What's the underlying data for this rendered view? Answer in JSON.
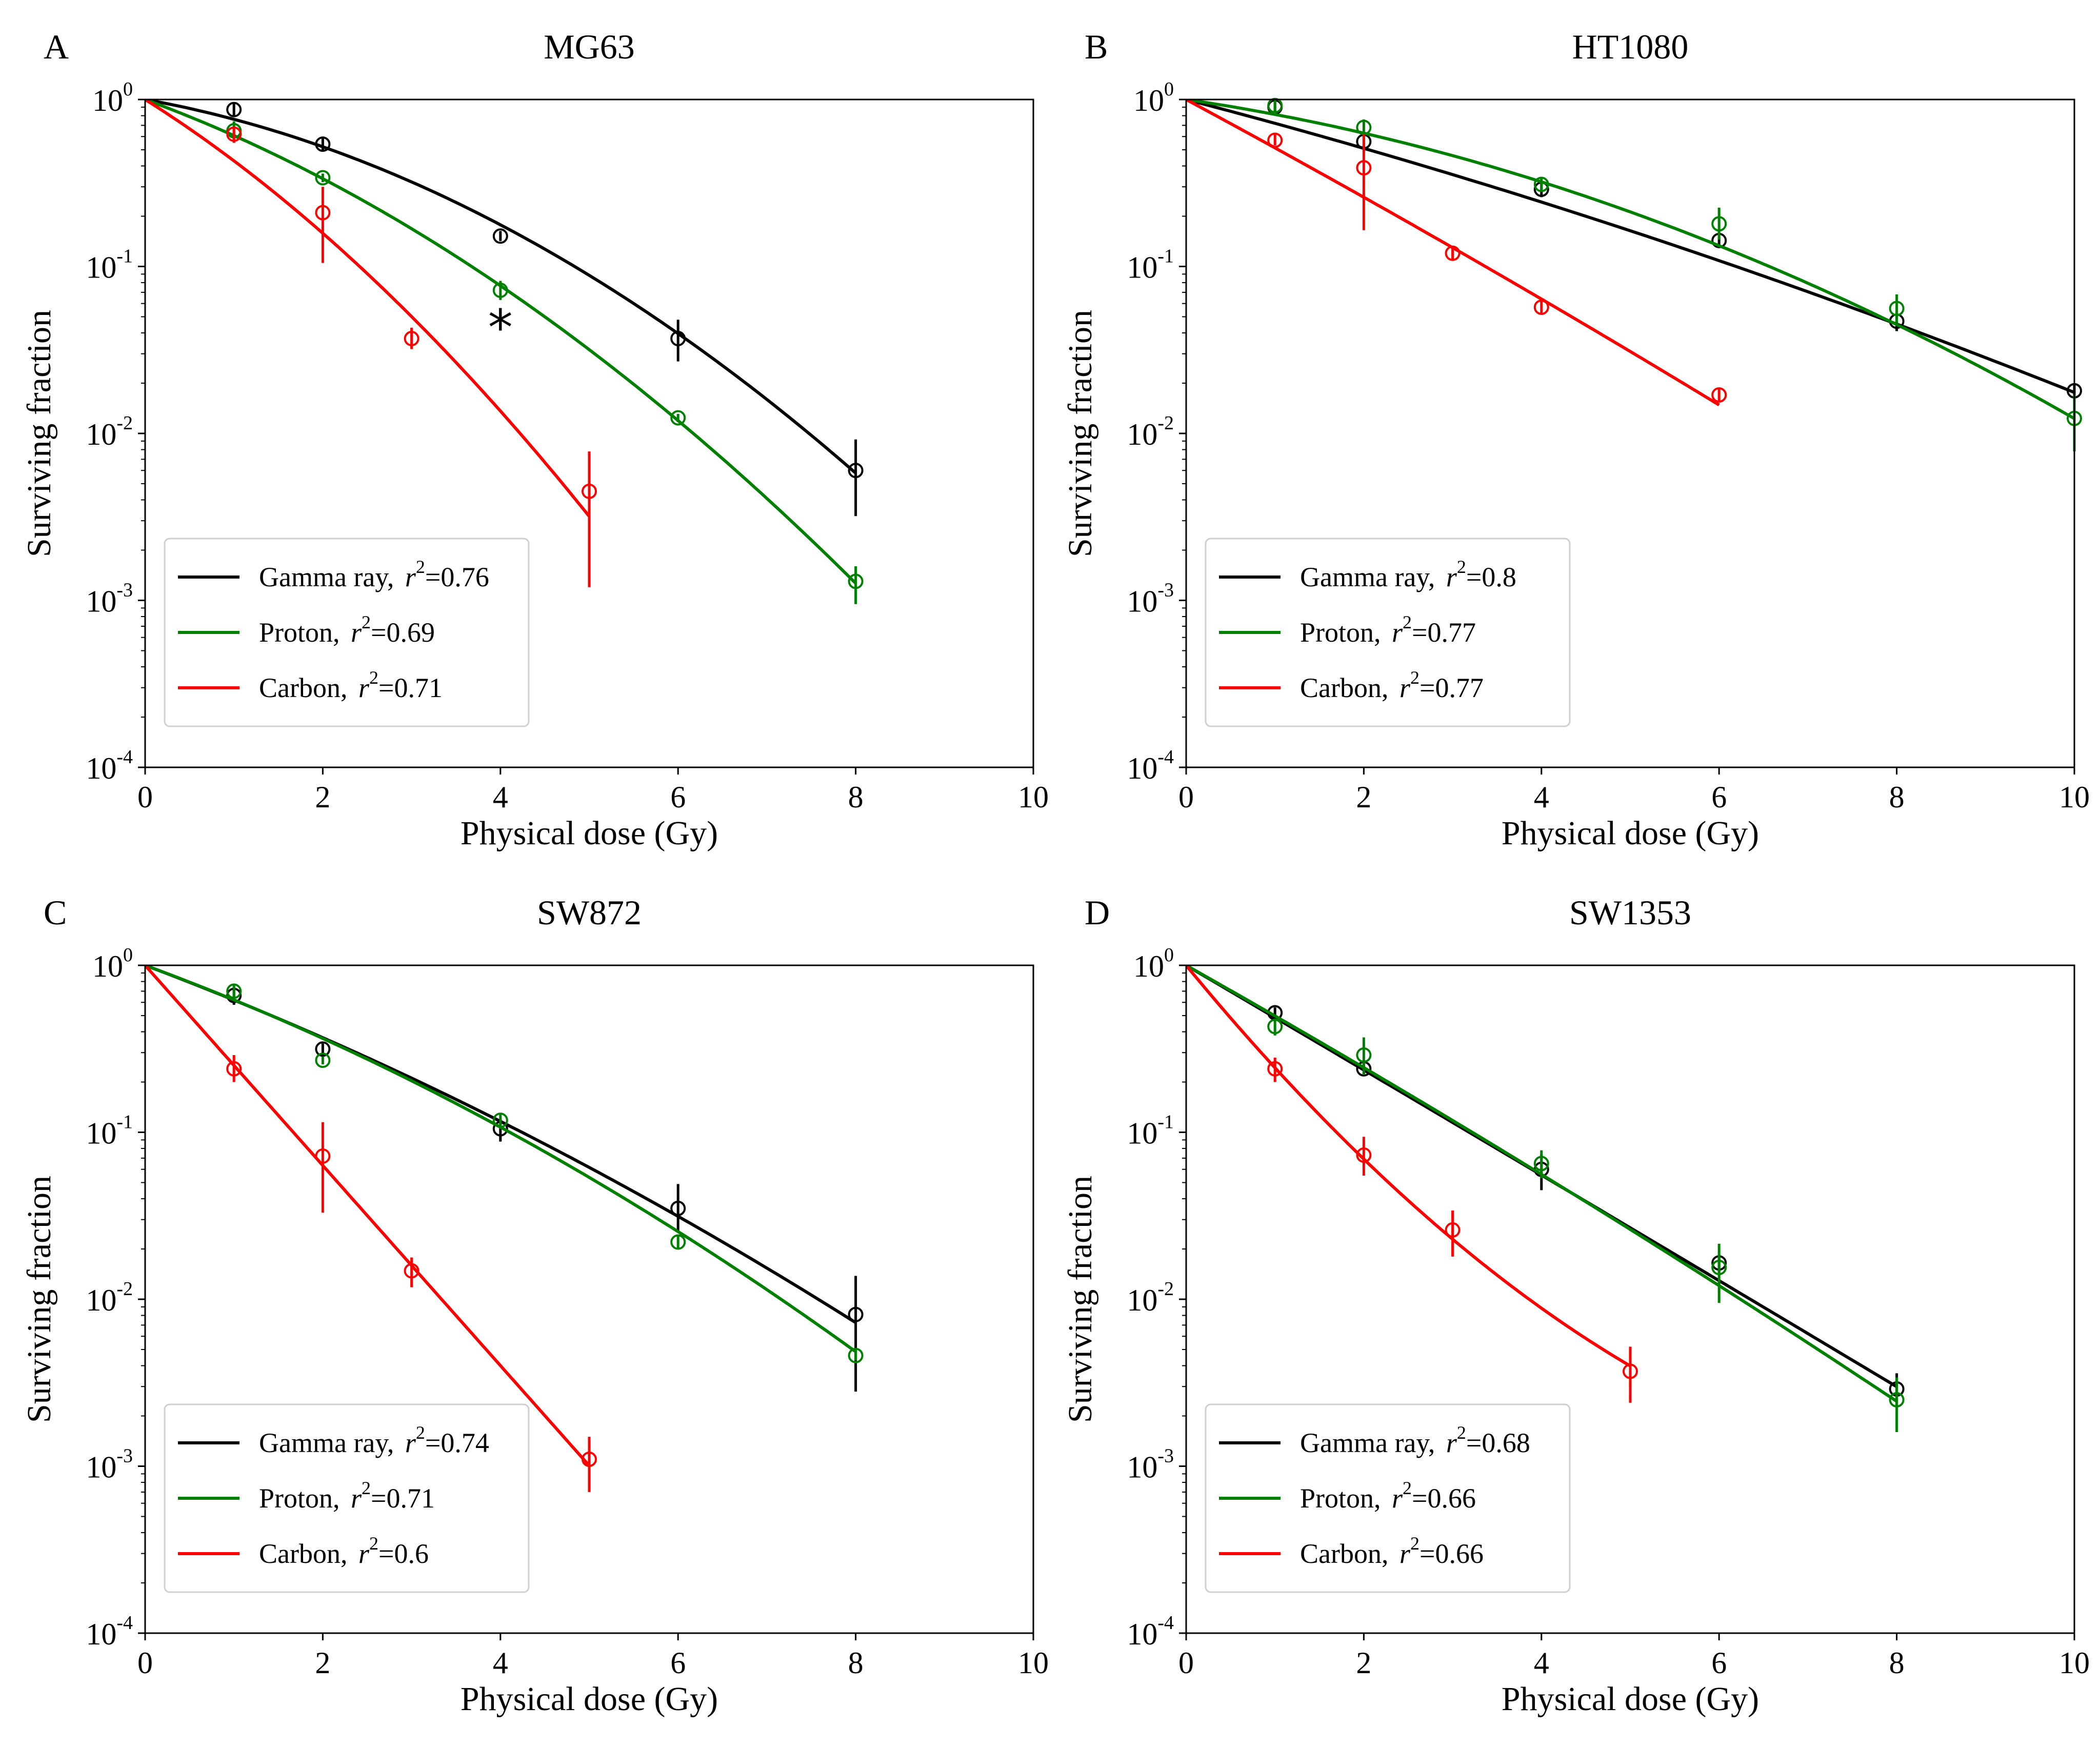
{
  "figure": {
    "legend_labels": {
      "gamma": "Gamma ray",
      "proton": "Proton",
      "carbon": "Carbon"
    },
    "r2_symbol": "r",
    "r2_power": "2",
    "colors": {
      "gamma": "#000000",
      "proton": "#008000",
      "carbon": "#ff0000"
    },
    "axis_xlabel": "Physical dose (Gy)",
    "axis_ylabel": "Surviving fraction"
  },
  "chart_data": [
    {
      "type": "scatter",
      "panel": "A",
      "title": "MG63",
      "xlabel": "Physical dose (Gy)",
      "ylabel": "Surviving fraction",
      "xlim": [
        0,
        10
      ],
      "ylim": [
        0.0001,
        1
      ],
      "yscale": "log",
      "x_ticks": [
        "0",
        "2",
        "4",
        "6",
        "8",
        "10"
      ],
      "y_ticks": [
        {
          "base": "10",
          "exp": "0"
        },
        {
          "base": "10",
          "exp": "-1"
        },
        {
          "base": "10",
          "exp": "-2"
        },
        {
          "base": "10",
          "exp": "-3"
        },
        {
          "base": "10",
          "exp": "-4"
        }
      ],
      "legend_position": "lower-left",
      "annotations": [
        {
          "text": "*",
          "x": 4,
          "y": 0.042
        }
      ],
      "series": [
        {
          "key": "gamma",
          "name": "Gamma ray",
          "r2": "0.76",
          "points": [
            {
              "x": 1,
              "y": 0.87,
              "lo": 0.79,
              "hi": 0.95
            },
            {
              "x": 2,
              "y": 0.54,
              "lo": 0.49,
              "hi": 0.6
            },
            {
              "x": 4,
              "y": 0.152,
              "lo": 0.142,
              "hi": 0.163
            },
            {
              "x": 6,
              "y": 0.037,
              "lo": 0.027,
              "hi": 0.048
            },
            {
              "x": 8,
              "y": 0.006,
              "lo": 0.0032,
              "hi": 0.0092
            }
          ],
          "fit": {
            "alpha": 0.22,
            "beta": 0.053,
            "xmax": 8
          }
        },
        {
          "key": "proton",
          "name": "Proton",
          "r2": "0.69",
          "points": [
            {
              "x": 1,
              "y": 0.65,
              "lo": 0.57,
              "hi": 0.74
            },
            {
              "x": 2,
              "y": 0.34,
              "lo": 0.32,
              "hi": 0.36
            },
            {
              "x": 4,
              "y": 0.072,
              "lo": 0.063,
              "hi": 0.082
            },
            {
              "x": 6,
              "y": 0.0124,
              "lo": 0.0117,
              "hi": 0.0131
            },
            {
              "x": 8,
              "y": 0.0013,
              "lo": 0.00095,
              "hi": 0.0016
            }
          ],
          "fit": {
            "alpha": 0.45,
            "beta": 0.048,
            "xmax": 8
          }
        },
        {
          "key": "carbon",
          "name": "Carbon",
          "r2": "0.71",
          "points": [
            {
              "x": 1,
              "y": 0.62,
              "lo": 0.55,
              "hi": 0.69
            },
            {
              "x": 2,
              "y": 0.21,
              "lo": 0.105,
              "hi": 0.3
            },
            {
              "x": 3,
              "y": 0.037,
              "lo": 0.032,
              "hi": 0.043
            },
            {
              "x": 5,
              "y": 0.0045,
              "lo": 0.0012,
              "hi": 0.0078
            }
          ],
          "fit": {
            "alpha": 0.77,
            "beta": 0.076,
            "xmax": 5
          }
        }
      ]
    },
    {
      "type": "scatter",
      "panel": "B",
      "title": "HT1080",
      "xlabel": "Physical dose (Gy)",
      "ylabel": "Surviving fraction",
      "xlim": [
        0,
        10
      ],
      "ylim": [
        0.0001,
        1
      ],
      "yscale": "log",
      "x_ticks": [
        "0",
        "2",
        "4",
        "6",
        "8",
        "10"
      ],
      "y_ticks": [
        {
          "base": "10",
          "exp": "0"
        },
        {
          "base": "10",
          "exp": "-1"
        },
        {
          "base": "10",
          "exp": "-2"
        },
        {
          "base": "10",
          "exp": "-3"
        },
        {
          "base": "10",
          "exp": "-4"
        }
      ],
      "legend_position": "lower-left",
      "annotations": [],
      "series": [
        {
          "key": "gamma",
          "name": "Gamma ray",
          "r2": "0.8",
          "points": [
            {
              "x": 1,
              "y": 0.9,
              "lo": 0.84,
              "hi": 0.97
            },
            {
              "x": 2,
              "y": 0.56,
              "lo": 0.49,
              "hi": 0.63
            },
            {
              "x": 4,
              "y": 0.29,
              "lo": 0.26,
              "hi": 0.32
            },
            {
              "x": 6,
              "y": 0.143,
              "lo": 0.135,
              "hi": 0.15
            },
            {
              "x": 8,
              "y": 0.047,
              "lo": 0.041,
              "hi": 0.054
            },
            {
              "x": 10,
              "y": 0.018,
              "lo": 0.016,
              "hi": 0.02
            }
          ],
          "fit": {
            "alpha": 0.32,
            "beta": 0.0084,
            "xmax": 10
          }
        },
        {
          "key": "proton",
          "name": "Proton",
          "r2": "0.77",
          "points": [
            {
              "x": 1,
              "y": 0.92,
              "lo": 0.85,
              "hi": 1
            },
            {
              "x": 2,
              "y": 0.68,
              "lo": 0.6,
              "hi": 0.76
            },
            {
              "x": 4,
              "y": 0.31,
              "lo": 0.28,
              "hi": 0.34
            },
            {
              "x": 6,
              "y": 0.18,
              "lo": 0.145,
              "hi": 0.225
            },
            {
              "x": 8,
              "y": 0.056,
              "lo": 0.046,
              "hi": 0.068
            },
            {
              "x": 10,
              "y": 0.0123,
              "lo": 0.0078,
              "hi": 0.017
            }
          ],
          "fit": {
            "alpha": 0.18,
            "beta": 0.026,
            "xmax": 10
          }
        },
        {
          "key": "carbon",
          "name": "Carbon",
          "r2": "0.77",
          "points": [
            {
              "x": 1,
              "y": 0.57,
              "lo": 0.53,
              "hi": 0.62
            },
            {
              "x": 2,
              "y": 0.39,
              "lo": 0.165,
              "hi": 0.62
            },
            {
              "x": 3,
              "y": 0.12,
              "lo": 0.11,
              "hi": 0.13
            },
            {
              "x": 4,
              "y": 0.057,
              "lo": 0.052,
              "hi": 0.062
            },
            {
              "x": 6,
              "y": 0.017,
              "lo": 0.0155,
              "hi": 0.0185
            }
          ],
          "fit": {
            "alpha": 0.66,
            "beta": 0.007,
            "xmax": 6
          }
        }
      ]
    },
    {
      "type": "scatter",
      "panel": "C",
      "title": "SW872",
      "xlabel": "Physical dose (Gy)",
      "ylabel": "Surviving fraction",
      "xlim": [
        0,
        10
      ],
      "ylim": [
        0.0001,
        1
      ],
      "yscale": "log",
      "x_ticks": [
        "0",
        "2",
        "4",
        "6",
        "8",
        "10"
      ],
      "y_ticks": [
        {
          "base": "10",
          "exp": "0"
        },
        {
          "base": "10",
          "exp": "-1"
        },
        {
          "base": "10",
          "exp": "-2"
        },
        {
          "base": "10",
          "exp": "-3"
        },
        {
          "base": "10",
          "exp": "-4"
        }
      ],
      "legend_position": "lower-left",
      "annotations": [],
      "series": [
        {
          "key": "gamma",
          "name": "Gamma ray",
          "r2": "0.74",
          "points": [
            {
              "x": 1,
              "y": 0.66,
              "lo": 0.58,
              "hi": 0.74
            },
            {
              "x": 2,
              "y": 0.315,
              "lo": 0.29,
              "hi": 0.34
            },
            {
              "x": 4,
              "y": 0.105,
              "lo": 0.088,
              "hi": 0.12
            },
            {
              "x": 6,
              "y": 0.035,
              "lo": 0.025,
              "hi": 0.049
            },
            {
              "x": 8,
              "y": 0.0081,
              "lo": 0.0028,
              "hi": 0.0138
            }
          ],
          "fit": {
            "alpha": 0.46,
            "beta": 0.0195,
            "xmax": 8
          }
        },
        {
          "key": "proton",
          "name": "Proton",
          "r2": "0.71",
          "points": [
            {
              "x": 1,
              "y": 0.7,
              "lo": 0.64,
              "hi": 0.76
            },
            {
              "x": 2,
              "y": 0.27,
              "lo": 0.255,
              "hi": 0.285
            },
            {
              "x": 4,
              "y": 0.118,
              "lo": 0.108,
              "hi": 0.128
            },
            {
              "x": 6,
              "y": 0.022,
              "lo": 0.02,
              "hi": 0.024
            },
            {
              "x": 8,
              "y": 0.0046,
              "lo": 0.0043,
              "hi": 0.005
            }
          ],
          "fit": {
            "alpha": 0.45,
            "beta": 0.027,
            "xmax": 8
          }
        },
        {
          "key": "carbon",
          "name": "Carbon",
          "r2": "0.6",
          "points": [
            {
              "x": 1,
              "y": 0.24,
              "lo": 0.2,
              "hi": 0.29
            },
            {
              "x": 2,
              "y": 0.072,
              "lo": 0.033,
              "hi": 0.115
            },
            {
              "x": 3,
              "y": 0.0148,
              "lo": 0.0118,
              "hi": 0.0178
            },
            {
              "x": 5,
              "y": 0.0011,
              "lo": 0.0007,
              "hi": 0.0015
            }
          ],
          "fit": {
            "alpha": 1.38,
            "beta": 0.0,
            "xmax": 5
          }
        }
      ]
    },
    {
      "type": "scatter",
      "panel": "D",
      "title": "SW1353",
      "xlabel": "Physical dose (Gy)",
      "ylabel": "Surviving fraction",
      "xlim": [
        0,
        10
      ],
      "ylim": [
        0.0001,
        1
      ],
      "yscale": "log",
      "x_ticks": [
        "0",
        "2",
        "4",
        "6",
        "8",
        "10"
      ],
      "y_ticks": [
        {
          "base": "10",
          "exp": "0"
        },
        {
          "base": "10",
          "exp": "-1"
        },
        {
          "base": "10",
          "exp": "-2"
        },
        {
          "base": "10",
          "exp": "-3"
        },
        {
          "base": "10",
          "exp": "-4"
        }
      ],
      "legend_position": "lower-left",
      "annotations": [],
      "series": [
        {
          "key": "gamma",
          "name": "Gamma ray",
          "r2": "0.68",
          "points": [
            {
              "x": 1,
              "y": 0.52,
              "lo": 0.48,
              "hi": 0.56
            },
            {
              "x": 2,
              "y": 0.24,
              "lo": 0.22,
              "hi": 0.26
            },
            {
              "x": 4,
              "y": 0.06,
              "lo": 0.045,
              "hi": 0.074
            },
            {
              "x": 6,
              "y": 0.0165,
              "lo": 0.0145,
              "hi": 0.0185
            },
            {
              "x": 8,
              "y": 0.0029,
              "lo": 0.0023,
              "hi": 0.0036
            }
          ],
          "fit": {
            "alpha": 0.72,
            "beta": 0.0008,
            "xmax": 8
          }
        },
        {
          "key": "proton",
          "name": "Proton",
          "r2": "0.66",
          "points": [
            {
              "x": 1,
              "y": 0.43,
              "lo": 0.38,
              "hi": 0.48
            },
            {
              "x": 2,
              "y": 0.29,
              "lo": 0.22,
              "hi": 0.37
            },
            {
              "x": 4,
              "y": 0.065,
              "lo": 0.053,
              "hi": 0.078
            },
            {
              "x": 6,
              "y": 0.0155,
              "lo": 0.0095,
              "hi": 0.0215
            },
            {
              "x": 8,
              "y": 0.0025,
              "lo": 0.0016,
              "hi": 0.0034
            }
          ],
          "fit": {
            "alpha": 0.69,
            "beta": 0.0077,
            "xmax": 8
          }
        },
        {
          "key": "carbon",
          "name": "Carbon",
          "r2": "0.66",
          "points": [
            {
              "x": 1,
              "y": 0.24,
              "lo": 0.2,
              "hi": 0.28
            },
            {
              "x": 2,
              "y": 0.073,
              "lo": 0.055,
              "hi": 0.094
            },
            {
              "x": 3,
              "y": 0.026,
              "lo": 0.018,
              "hi": 0.034
            },
            {
              "x": 5,
              "y": 0.0037,
              "lo": 0.0024,
              "hi": 0.0052
            }
          ],
          "fit": {
            "alpha": 1.49,
            "beta": -0.077,
            "xmax": 5
          }
        }
      ]
    }
  ]
}
